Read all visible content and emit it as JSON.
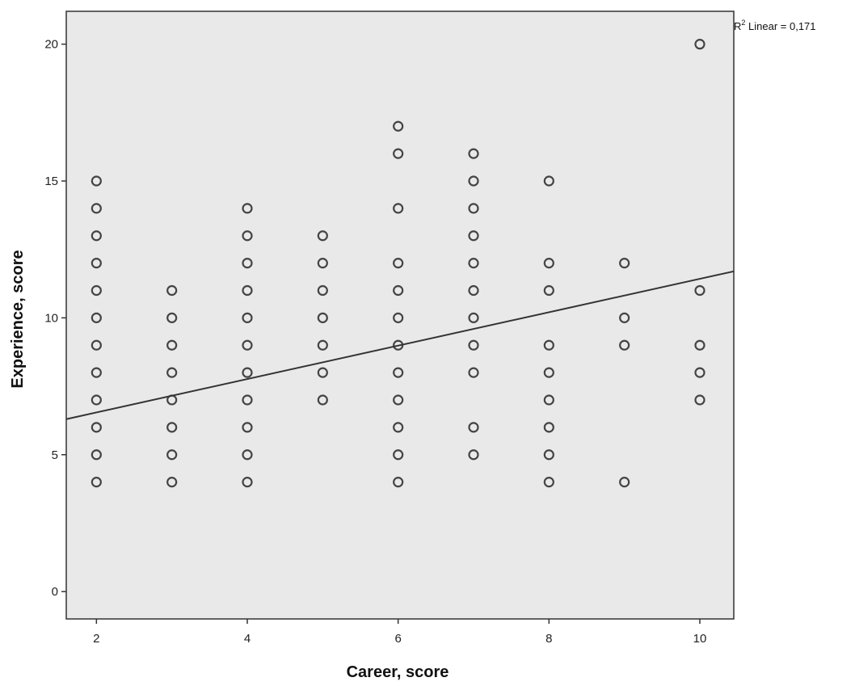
{
  "chart_data": {
    "type": "scatter",
    "xlabel": "Career, score",
    "ylabel": "Experience, score",
    "xlim": [
      1.6,
      10.45
    ],
    "ylim": [
      -1.0,
      21.2
    ],
    "x_ticks": [
      "2",
      "4",
      "6",
      "8",
      "10"
    ],
    "y_ticks": [
      "0",
      "5",
      "10",
      "15",
      "20"
    ],
    "grid": false,
    "background": "#e9e9e9",
    "point_color": "#444444",
    "fit_line": {
      "label_prefix": "R",
      "label_sup": "2",
      "label_suffix": " Linear = 0,171",
      "x": [
        1.6,
        10.45
      ],
      "y": [
        6.3,
        11.7
      ]
    },
    "points": [
      {
        "x": 2,
        "y": [
          4,
          5,
          6,
          7,
          8,
          9,
          10,
          11,
          12,
          13,
          14,
          15
        ]
      },
      {
        "x": 3,
        "y": [
          4,
          5,
          6,
          7,
          8,
          9,
          10,
          11
        ]
      },
      {
        "x": 4,
        "y": [
          4,
          5,
          6,
          7,
          8,
          9,
          10,
          11,
          12,
          13,
          14
        ]
      },
      {
        "x": 5,
        "y": [
          7,
          8,
          9,
          10,
          11,
          12,
          13
        ]
      },
      {
        "x": 6,
        "y": [
          4,
          5,
          6,
          7,
          8,
          9,
          10,
          11,
          12,
          14,
          16,
          17
        ]
      },
      {
        "x": 7,
        "y": [
          5,
          6,
          8,
          9,
          10,
          11,
          12,
          13,
          14,
          15,
          16
        ]
      },
      {
        "x": 8,
        "y": [
          4,
          5,
          6,
          7,
          8,
          9,
          11,
          12,
          15
        ]
      },
      {
        "x": 9,
        "y": [
          4,
          9,
          10,
          12
        ]
      },
      {
        "x": 10,
        "y": [
          7,
          8,
          9,
          11,
          20
        ]
      }
    ]
  }
}
